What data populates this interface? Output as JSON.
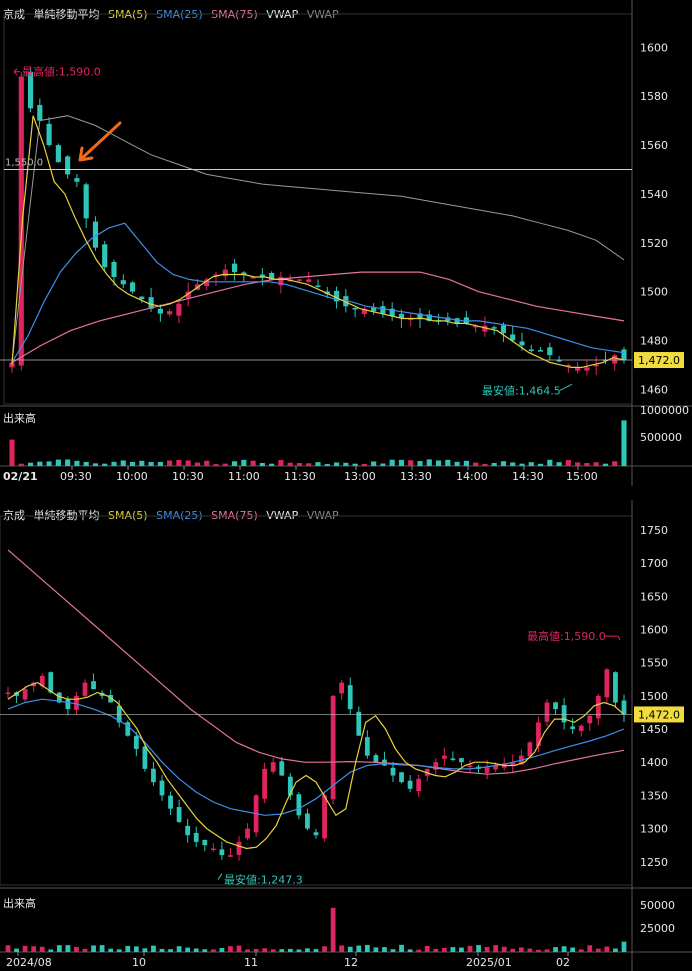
{
  "intraday": {
    "legend": {
      "name": "京成",
      "kind": "単純移動平均",
      "sma5": "SMA(5)",
      "sma25": "SMA(25)",
      "sma75": "SMA(75)",
      "vwap": "VWAP",
      "vwap2": "VWAP"
    },
    "high_label": "最高値:1,590.0",
    "low_label": "最安値:1,464.5",
    "hline_label": "1,550.0",
    "last_price": "1,472.0",
    "volume_label": "出来高",
    "date_label": "02/21",
    "colors": {
      "up": "#e0245e",
      "down": "#2ec6b8",
      "sma5": "#e6d23c",
      "sma25": "#3f8fe8",
      "sma75": "#e8739a",
      "vwap": "#9a9a9a",
      "arrow": "#f06a1a"
    }
  },
  "daily": {
    "legend": {
      "name": "京成",
      "kind": "単純移動平均",
      "sma5": "SMA(5)",
      "sma25": "SMA(25)",
      "sma75": "SMA(75)",
      "vwap": "VWAP",
      "vwap2": "VWAP"
    },
    "high_label": "最高値:1,590.0",
    "low_label": "最安値:1,247.3",
    "last_price": "1,472.0",
    "volume_label": "出来高"
  },
  "chart_data": [
    {
      "type": "candlestick",
      "title": "",
      "x_ticks": [
        "09:30",
        "10:00",
        "10:30",
        "11:00",
        "11:30",
        "13:00",
        "13:30",
        "14:00",
        "14:30",
        "15:00"
      ],
      "y_ticks": [
        1460,
        1480,
        1500,
        1520,
        1540,
        1560,
        1580,
        1600
      ],
      "ylim": [
        1454,
        1612
      ],
      "volume_ticks": [
        "1000000",
        "500000"
      ],
      "volume_max": 1000000,
      "high": 1590.0,
      "low": 1464.5,
      "last": 1472.0,
      "reference_line": 1550.0,
      "closes": [
        1471,
        1588,
        1575,
        1570,
        1560,
        1553,
        1548,
        1545,
        1530,
        1518,
        1510,
        1506,
        1503,
        1500,
        1497,
        1493,
        1491,
        1492,
        1495,
        1500,
        1503,
        1505,
        1507,
        1509,
        1508,
        1507,
        1506,
        1506,
        1505,
        1506,
        1505,
        1505,
        1505,
        1502,
        1499,
        1496,
        1494,
        1493,
        1493,
        1492,
        1491,
        1490,
        1489,
        1489,
        1489,
        1488,
        1488,
        1488,
        1487,
        1487,
        1486,
        1486,
        1485,
        1483,
        1480,
        1478,
        1476,
        1476,
        1474,
        1472,
        1470,
        1469,
        1469,
        1470,
        1472,
        1474,
        1472
      ],
      "sma5": [
        1470,
        1530,
        1572,
        1560,
        1545,
        1540,
        1530,
        1521,
        1513,
        1507,
        1502,
        1499,
        1497,
        1495,
        1494,
        1495,
        1497,
        1500,
        1503,
        1506,
        1507,
        1507,
        1507,
        1506,
        1506,
        1505,
        1505,
        1504,
        1503,
        1501,
        1499,
        1497,
        1495,
        1493,
        1492,
        1491,
        1490,
        1489,
        1489,
        1489,
        1488,
        1488,
        1487,
        1487,
        1486,
        1485,
        1484,
        1481,
        1478,
        1475,
        1473,
        1471,
        1470,
        1469,
        1469,
        1470,
        1471,
        1473,
        1472
      ],
      "sma25": [
        1471,
        1482,
        1496,
        1508,
        1516,
        1522,
        1526,
        1528,
        1520,
        1512,
        1507,
        1505,
        1504,
        1504,
        1504,
        1504,
        1504,
        1503,
        1501,
        1499,
        1497,
        1496,
        1494,
        1493,
        1492,
        1491,
        1490,
        1489,
        1488,
        1488,
        1487,
        1486,
        1485,
        1483,
        1481,
        1479,
        1477,
        1476,
        1475
      ],
      "sma75": [
        1471,
        1478,
        1484,
        1488,
        1491,
        1494,
        1497,
        1500,
        1503,
        1505,
        1506,
        1507,
        1508,
        1508,
        1508,
        1505,
        1500,
        1497,
        1494,
        1492,
        1490,
        1488
      ],
      "vwap": [
        1471,
        1570,
        1572,
        1568,
        1562,
        1556,
        1552,
        1548,
        1546,
        1544,
        1543,
        1542,
        1541,
        1540,
        1539,
        1537,
        1535,
        1533,
        1531,
        1528,
        1525,
        1521,
        1513
      ]
    },
    {
      "type": "candlestick",
      "title": "",
      "x_ticks": [
        "2024/08",
        "10",
        "11",
        "12",
        "2025/01",
        "02"
      ],
      "y_ticks": [
        1250,
        1300,
        1350,
        1400,
        1450,
        1500,
        1550,
        1600,
        1650,
        1700,
        1750
      ],
      "ylim": [
        1215,
        1765
      ],
      "volume_ticks": [
        "50000",
        "25000"
      ],
      "volume_max": 65000,
      "high": 1590.0,
      "low": 1247.3,
      "last": 1472.0,
      "closes": [
        1505,
        1500,
        1510,
        1520,
        1530,
        1505,
        1490,
        1480,
        1500,
        1520,
        1510,
        1500,
        1490,
        1460,
        1440,
        1420,
        1390,
        1370,
        1350,
        1330,
        1310,
        1290,
        1280,
        1275,
        1270,
        1260,
        1260,
        1280,
        1300,
        1350,
        1390,
        1400,
        1380,
        1350,
        1320,
        1300,
        1290,
        1350,
        1500,
        1520,
        1480,
        1440,
        1410,
        1400,
        1395,
        1380,
        1370,
        1360,
        1375,
        1390,
        1400,
        1410,
        1405,
        1400,
        1395,
        1390,
        1392,
        1395,
        1398,
        1400,
        1410,
        1430,
        1460,
        1490,
        1480,
        1460,
        1450,
        1455,
        1470,
        1500,
        1540,
        1490,
        1472
      ],
      "sma5": [
        1495,
        1505,
        1515,
        1520,
        1510,
        1500,
        1495,
        1495,
        1498,
        1505,
        1500,
        1490,
        1470,
        1450,
        1420,
        1400,
        1375,
        1355,
        1335,
        1315,
        1300,
        1290,
        1280,
        1275,
        1270,
        1272,
        1285,
        1305,
        1340,
        1370,
        1380,
        1370,
        1345,
        1320,
        1330,
        1400,
        1460,
        1470,
        1450,
        1420,
        1400,
        1390,
        1385,
        1380,
        1378,
        1385,
        1395,
        1400,
        1400,
        1398,
        1395,
        1395,
        1400,
        1415,
        1445,
        1465,
        1465,
        1460,
        1470,
        1485,
        1490,
        1485,
        1472
      ],
      "sma25": [
        1480,
        1490,
        1495,
        1492,
        1488,
        1480,
        1470,
        1455,
        1430,
        1400,
        1375,
        1355,
        1340,
        1330,
        1325,
        1320,
        1322,
        1330,
        1345,
        1365,
        1385,
        1395,
        1398,
        1396,
        1395,
        1392,
        1390,
        1390,
        1393,
        1397,
        1403,
        1410,
        1418,
        1425,
        1432,
        1440,
        1450
      ],
      "sma75": [
        1720,
        1690,
        1660,
        1630,
        1600,
        1570,
        1540,
        1510,
        1480,
        1455,
        1430,
        1415,
        1405,
        1400,
        1400,
        1401,
        1400,
        1398,
        1395,
        1390,
        1385,
        1382,
        1384,
        1390,
        1398,
        1405,
        1412,
        1418
      ]
    }
  ]
}
